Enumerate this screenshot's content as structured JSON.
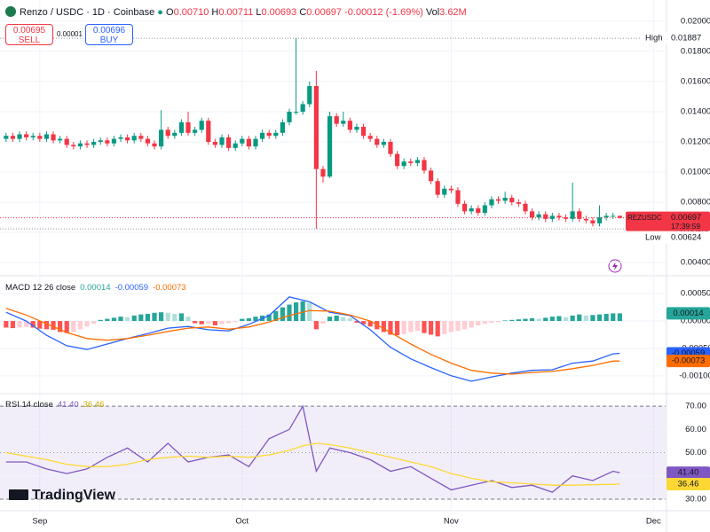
{
  "header": {
    "symbol": "Renzo / USDC · 1D · Coinbase",
    "o_label": "O",
    "o": "0.00710",
    "h_label": "H",
    "h": "0.00711",
    "l_label": "L",
    "l": "0.00693",
    "c_label": "C",
    "c": "0.00697",
    "change": "-0.00012 (-1.69%)",
    "vol_label": "Vol",
    "vol": "3.62M"
  },
  "trade": {
    "sell_price": "0.00695",
    "sell_label": "SELL",
    "spread": "0.00001",
    "buy_price": "0.00696",
    "buy_label": "BUY"
  },
  "branding": "TradingView",
  "chart_data": [
    {
      "type": "candlestick",
      "xlim": [
        -0.9,
        97.8
      ],
      "xticks": [
        {
          "value": 5,
          "label": "Sep"
        },
        {
          "value": 35,
          "label": "Oct"
        },
        {
          "value": 66,
          "label": "Nov"
        },
        {
          "value": 96,
          "label": "Dec"
        }
      ],
      "ylim": [
        0.00319,
        0.0214
      ],
      "yticks": [
        {
          "value": 0.004,
          "label": "0.00400"
        },
        {
          "value": 0.006,
          "label": "0.00600"
        },
        {
          "value": 0.008,
          "label": "0.00800"
        },
        {
          "value": 0.01,
          "label": "0.01000"
        },
        {
          "value": 0.012,
          "label": "0.01200"
        },
        {
          "value": 0.014,
          "label": "0.01400"
        },
        {
          "value": 0.016,
          "label": "0.01600"
        },
        {
          "value": 0.018,
          "label": "0.01800"
        },
        {
          "value": 0.02,
          "label": "0.02000"
        }
      ],
      "up_color": "#089981",
      "down_color": "#f23645",
      "open": [
        0.0122,
        0.0124,
        0.0122,
        0.0125,
        0.0123,
        0.0124,
        0.0122,
        0.0125,
        0.0121,
        0.0122,
        0.0118,
        0.0117,
        0.0119,
        0.0118,
        0.012,
        0.0121,
        0.0119,
        0.0122,
        0.0123,
        0.0121,
        0.0124,
        0.0122,
        0.0119,
        0.0117,
        0.0128,
        0.0124,
        0.0126,
        0.0133,
        0.0126,
        0.0128,
        0.0134,
        0.012,
        0.0118,
        0.0123,
        0.0116,
        0.0119,
        0.0122,
        0.0117,
        0.0122,
        0.0126,
        0.0124,
        0.0126,
        0.0133,
        0.014,
        0.014,
        0.0145,
        0.0157,
        0.0102,
        0.0097,
        0.0137,
        0.0132,
        0.0134,
        0.0128,
        0.013,
        0.0124,
        0.0122,
        0.0118,
        0.012,
        0.0112,
        0.0104,
        0.0107,
        0.0106,
        0.0108,
        0.0101,
        0.0094,
        0.0085,
        0.0089,
        0.0088,
        0.0079,
        0.0074,
        0.0076,
        0.0073,
        0.0078,
        0.0082,
        0.0081,
        0.0083,
        0.008,
        0.0079,
        0.0074,
        0.007,
        0.0072,
        0.0069,
        0.0071,
        0.007,
        0.0069,
        0.0074,
        0.0069,
        0.0068,
        0.0066,
        0.007,
        0.0071,
        0.0071
      ],
      "high": [
        0.0126,
        0.0126,
        0.0127,
        0.0127,
        0.0126,
        0.0126,
        0.0127,
        0.0127,
        0.0124,
        0.0124,
        0.012,
        0.0121,
        0.0121,
        0.0122,
        0.0123,
        0.0123,
        0.0124,
        0.0125,
        0.0125,
        0.0126,
        0.0126,
        0.0124,
        0.0121,
        0.0141,
        0.013,
        0.0128,
        0.0135,
        0.014,
        0.013,
        0.0136,
        0.0136,
        0.0122,
        0.0125,
        0.0125,
        0.0121,
        0.0124,
        0.0124,
        0.0124,
        0.0128,
        0.0128,
        0.0128,
        0.0135,
        0.0142,
        0.01887,
        0.0147,
        0.016,
        0.0167,
        0.0104,
        0.014,
        0.0139,
        0.014,
        0.0136,
        0.0132,
        0.0132,
        0.0126,
        0.0124,
        0.0122,
        0.0122,
        0.0114,
        0.0109,
        0.0109,
        0.011,
        0.011,
        0.0103,
        0.0096,
        0.0091,
        0.0091,
        0.009,
        0.0081,
        0.0078,
        0.0078,
        0.008,
        0.0084,
        0.0084,
        0.0087,
        0.0085,
        0.0082,
        0.0081,
        0.0076,
        0.0074,
        0.0074,
        0.0073,
        0.0073,
        0.0072,
        0.0093,
        0.0076,
        0.0071,
        0.007,
        0.0078,
        0.0073,
        0.0073,
        0.00711
      ],
      "low": [
        0.012,
        0.012,
        0.012,
        0.0121,
        0.0121,
        0.012,
        0.012,
        0.0119,
        0.0119,
        0.0116,
        0.0115,
        0.0115,
        0.0116,
        0.0116,
        0.0118,
        0.0117,
        0.0117,
        0.012,
        0.0119,
        0.0119,
        0.012,
        0.0117,
        0.0115,
        0.0115,
        0.0122,
        0.0122,
        0.0124,
        0.0124,
        0.0124,
        0.0126,
        0.0118,
        0.0116,
        0.0116,
        0.0114,
        0.0114,
        0.0117,
        0.0115,
        0.0115,
        0.012,
        0.0122,
        0.0122,
        0.0124,
        0.0131,
        0.0138,
        0.0138,
        0.0143,
        0.00624,
        0.0093,
        0.0096,
        0.013,
        0.013,
        0.0126,
        0.0126,
        0.0122,
        0.012,
        0.0116,
        0.0116,
        0.011,
        0.0102,
        0.0102,
        0.0104,
        0.0104,
        0.0099,
        0.0092,
        0.0083,
        0.0083,
        0.0086,
        0.0077,
        0.0072,
        0.0072,
        0.0071,
        0.0071,
        0.0076,
        0.0079,
        0.0079,
        0.0078,
        0.0077,
        0.0072,
        0.0068,
        0.0068,
        0.0067,
        0.0067,
        0.0068,
        0.0067,
        0.0067,
        0.0067,
        0.0066,
        0.0064,
        0.0064,
        0.0068,
        0.0069,
        0.00693
      ],
      "close": [
        0.0124,
        0.0122,
        0.0125,
        0.0123,
        0.0124,
        0.0122,
        0.0125,
        0.0121,
        0.0122,
        0.0118,
        0.0117,
        0.0119,
        0.0118,
        0.012,
        0.0121,
        0.0119,
        0.0122,
        0.0123,
        0.0121,
        0.0124,
        0.0122,
        0.0119,
        0.0117,
        0.0128,
        0.0124,
        0.0126,
        0.0133,
        0.0126,
        0.0128,
        0.0134,
        0.012,
        0.0118,
        0.0123,
        0.0116,
        0.0119,
        0.0122,
        0.0117,
        0.0122,
        0.0126,
        0.0124,
        0.0126,
        0.0133,
        0.014,
        0.014,
        0.0145,
        0.0157,
        0.0102,
        0.0097,
        0.0137,
        0.0132,
        0.0134,
        0.0128,
        0.013,
        0.0124,
        0.0122,
        0.0118,
        0.012,
        0.0112,
        0.0104,
        0.0107,
        0.0106,
        0.0108,
        0.0101,
        0.0094,
        0.0085,
        0.0089,
        0.0088,
        0.0079,
        0.0074,
        0.0076,
        0.0073,
        0.0078,
        0.0082,
        0.0081,
        0.0083,
        0.008,
        0.0079,
        0.0074,
        0.007,
        0.0072,
        0.0069,
        0.0071,
        0.007,
        0.0069,
        0.0074,
        0.0069,
        0.0068,
        0.0066,
        0.007,
        0.0071,
        0.0071,
        0.00697
      ],
      "high_marker": {
        "label": "High",
        "value": 0.01887,
        "value_label": "0.01887"
      },
      "low_marker": {
        "label": "Low",
        "value": 0.00624,
        "value_label": "0.00624"
      },
      "last_price": {
        "symbol": "REZUSDC",
        "value": 0.00697,
        "value_label": "0.00697",
        "countdown": "17:39:59"
      }
    },
    {
      "type": "macd",
      "title": "MACD 12 26 close",
      "ylim": [
        -0.00131,
        0.00081
      ],
      "yticks": [
        {
          "value": -0.001,
          "label": "-0.00100"
        },
        {
          "value": -0.0005,
          "label": "-0.00050"
        },
        {
          "value": 0,
          "label": "0.00000"
        },
        {
          "value": 0.0005,
          "label": "0.00050"
        }
      ],
      "histogram": [
        -0.00012,
        -0.00013,
        -0.00012,
        -0.00011,
        -0.00012,
        -0.00014,
        -0.00015,
        -0.00016,
        -0.0002,
        -0.00022,
        -0.0002,
        -0.00015,
        -0.0001,
        -5e-05,
        2e-05,
        4e-05,
        6e-05,
        8e-05,
        7e-05,
        0.0001,
        0.00012,
        0.00013,
        0.00015,
        0.00016,
        0.00015,
        0.00013,
        0.00014,
        8e-05,
        -4e-05,
        -6e-05,
        -5e-05,
        -8e-05,
        -6e-05,
        -4e-05,
        -2e-05,
        4e-05,
        5e-05,
        8e-05,
        0.0001,
        0.00012,
        0.00018,
        0.00025,
        0.0003,
        0.00034,
        0.00036,
        0.00033,
        -0.00015,
        -5e-05,
        8e-05,
        0.0001,
        7e-05,
        5e-05,
        -3e-05,
        -6e-05,
        -0.0001,
        -0.00015,
        -0.0002,
        -0.00025,
        -0.00026,
        -0.00024,
        -0.0002,
        -0.00018,
        -0.00022,
        -0.00025,
        -0.00028,
        -0.00024,
        -0.0002,
        -0.00018,
        -0.00015,
        -0.00012,
        -8e-05,
        -5e-05,
        -3e-05,
        -2e-05,
        1e-05,
        2e-05,
        3e-05,
        4e-05,
        5e-05,
        4e-05,
        6e-05,
        8e-05,
        9e-05,
        7e-05,
        0.0001,
        0.00012,
        0.0001,
        0.00011,
        0.00012,
        0.00013,
        0.00014,
        0.00014
      ],
      "histogram_label": "0.00014",
      "histogram_colors": {
        "up_strong": "#26a69a",
        "up_weak": "#b2dfdb",
        "down_strong": "#ff5252",
        "down_weak": "#ffcdd2"
      },
      "x": [
        0,
        3,
        6,
        9,
        12,
        15,
        18,
        21,
        24,
        27,
        30,
        33,
        36,
        39,
        42,
        45,
        48,
        51,
        54,
        57,
        60,
        63,
        66,
        69,
        72,
        75,
        78,
        81,
        84,
        87,
        90,
        91
      ],
      "series": [
        {
          "color": "#2962ff",
          "last_label": "-0.00059",
          "values": [
            0.00016,
            0.0,
            -0.00026,
            -0.00045,
            -0.00052,
            -0.00042,
            -0.00032,
            -0.00023,
            -0.00013,
            -0.0001,
            -0.00016,
            -0.00018,
            -6e-05,
            0.0001,
            0.00044,
            0.00035,
            0.00016,
            0.0001,
            -0.00016,
            -0.00048,
            -0.00069,
            -0.00085,
            -0.001,
            -0.0011,
            -0.00102,
            -0.00095,
            -0.0009,
            -0.00089,
            -0.00077,
            -0.00073,
            -0.0006,
            -0.00059
          ]
        },
        {
          "color": "#ff6d00",
          "last_label": "-0.00073",
          "values": [
            0.00023,
            0.00011,
            -5e-05,
            -0.00021,
            -0.00032,
            -0.00035,
            -0.00032,
            -0.00026,
            -0.00019,
            -0.00013,
            -0.00011,
            -0.00015,
            -0.00011,
            -2e-05,
            0.0001,
            0.00019,
            0.00018,
            0.00011,
            0.0,
            -0.00021,
            -0.00042,
            -0.00061,
            -0.00077,
            -0.0009,
            -0.00095,
            -0.00097,
            -0.00094,
            -0.00092,
            -0.00087,
            -0.00081,
            -0.00073,
            -0.00073
          ]
        }
      ]
    },
    {
      "type": "rsi",
      "title": "RSI 14 close",
      "ylim": [
        25.4,
        75
      ],
      "yticks": [
        {
          "value": 30,
          "label": "30.00"
        },
        {
          "value": 40,
          "label": "40.00"
        },
        {
          "value": 50,
          "label": "50.00"
        },
        {
          "value": 60,
          "label": "60.00"
        },
        {
          "value": 70,
          "label": "70.00"
        }
      ],
      "band": [
        30,
        70
      ],
      "midline": 50,
      "band_color": "#7e57c2",
      "x": [
        0,
        3,
        6,
        9,
        12,
        15,
        18,
        21,
        24,
        27,
        30,
        33,
        36,
        39,
        42,
        44,
        46,
        48,
        51,
        54,
        57,
        60,
        63,
        66,
        69,
        72,
        75,
        78,
        81,
        84,
        87,
        90,
        91
      ],
      "series": [
        {
          "color": "#7e57c2",
          "last_label": "41.40",
          "values": [
            46,
            46,
            43,
            41,
            43,
            48,
            52,
            46,
            54,
            46,
            48,
            49,
            44,
            56,
            60,
            70,
            42,
            52,
            50,
            47,
            42,
            44,
            39,
            34,
            36,
            38,
            35,
            36,
            33,
            40,
            38,
            42,
            41.4
          ]
        },
        {
          "color": "#fdd835",
          "last_label": "36.46",
          "values": [
            50,
            48.5,
            47,
            45,
            44,
            44,
            45,
            47,
            48,
            48.5,
            48,
            48.5,
            48,
            49,
            51,
            53,
            54,
            53.5,
            52,
            50,
            48,
            46,
            44,
            41,
            39,
            37.5,
            37,
            36.5,
            36,
            36,
            36.2,
            36.4,
            36.46
          ]
        }
      ]
    }
  ]
}
